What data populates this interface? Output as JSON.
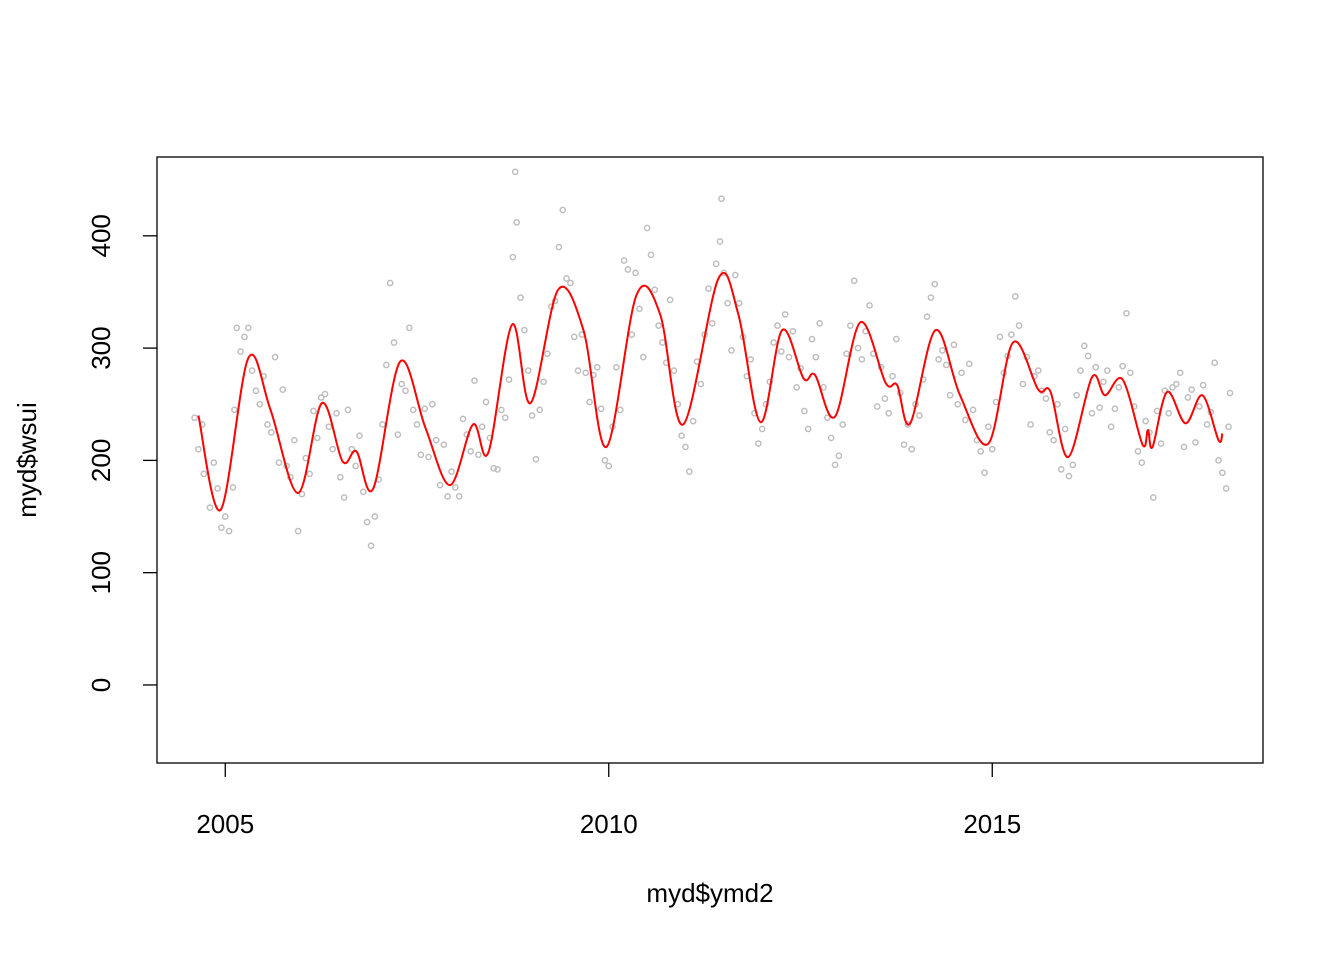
{
  "chart_data": {
    "type": "scatter",
    "xlabel": "myd$ymd2",
    "ylabel": "myd$wsui",
    "xlim": [
      2004.11,
      2018.53
    ],
    "ylim": [
      -69.5,
      470.2
    ],
    "xticks": [
      2005,
      2010,
      2015
    ],
    "yticks": [
      0,
      100,
      200,
      300,
      400
    ],
    "series": [
      {
        "type": "scatter",
        "color": "#bebebe",
        "x": [
          2004.6,
          2004.65,
          2004.7,
          2004.72,
          2004.8,
          2004.85,
          2004.9,
          2004.95,
          2005.0,
          2005.05,
          2005.1,
          2005.12,
          2005.15,
          2005.2,
          2005.25,
          2005.3,
          2005.35,
          2005.4,
          2005.45,
          2005.5,
          2005.55,
          2005.6,
          2005.65,
          2005.7,
          2005.75,
          2005.8,
          2005.85,
          2005.9,
          2005.95,
          2006.0,
          2006.05,
          2006.1,
          2006.15,
          2006.2,
          2006.25,
          2006.3,
          2006.35,
          2006.4,
          2006.45,
          2006.5,
          2006.55,
          2006.6,
          2006.65,
          2006.7,
          2006.75,
          2006.8,
          2006.85,
          2006.9,
          2006.95,
          2007.0,
          2007.05,
          2007.1,
          2007.15,
          2007.2,
          2007.25,
          2007.3,
          2007.35,
          2007.4,
          2007.45,
          2007.5,
          2007.55,
          2007.6,
          2007.65,
          2007.7,
          2007.75,
          2007.8,
          2007.85,
          2007.9,
          2007.95,
          2008.0,
          2008.05,
          2008.1,
          2008.15,
          2008.2,
          2008.25,
          2008.3,
          2008.35,
          2008.4,
          2008.45,
          2008.5,
          2008.55,
          2008.6,
          2008.65,
          2008.7,
          2008.75,
          2008.78,
          2008.8,
          2008.85,
          2008.9,
          2008.95,
          2009.0,
          2009.05,
          2009.1,
          2009.15,
          2009.2,
          2009.25,
          2009.3,
          2009.35,
          2009.4,
          2009.45,
          2009.5,
          2009.55,
          2009.6,
          2009.65,
          2009.7,
          2009.75,
          2009.8,
          2009.85,
          2009.9,
          2009.95,
          2010.0,
          2010.05,
          2010.1,
          2010.15,
          2010.2,
          2010.25,
          2010.3,
          2010.35,
          2010.4,
          2010.45,
          2010.5,
          2010.55,
          2010.6,
          2010.65,
          2010.7,
          2010.75,
          2010.8,
          2010.85,
          2010.9,
          2010.95,
          2011.0,
          2011.05,
          2011.1,
          2011.15,
          2011.2,
          2011.25,
          2011.3,
          2011.35,
          2011.4,
          2011.45,
          2011.47,
          2011.5,
          2011.55,
          2011.6,
          2011.65,
          2011.7,
          2011.75,
          2011.8,
          2011.85,
          2011.9,
          2011.95,
          2012.0,
          2012.05,
          2012.1,
          2012.15,
          2012.2,
          2012.25,
          2012.3,
          2012.35,
          2012.4,
          2012.45,
          2012.5,
          2012.55,
          2012.6,
          2012.65,
          2012.7,
          2012.75,
          2012.8,
          2012.85,
          2012.9,
          2012.95,
          2013.0,
          2013.05,
          2013.1,
          2013.15,
          2013.2,
          2013.25,
          2013.3,
          2013.35,
          2013.4,
          2013.45,
          2013.5,
          2013.55,
          2013.6,
          2013.65,
          2013.7,
          2013.75,
          2013.8,
          2013.85,
          2013.9,
          2013.95,
          2014.0,
          2014.05,
          2014.1,
          2014.15,
          2014.2,
          2014.25,
          2014.3,
          2014.35,
          2014.4,
          2014.45,
          2014.5,
          2014.55,
          2014.6,
          2014.65,
          2014.7,
          2014.75,
          2014.8,
          2014.85,
          2014.9,
          2014.95,
          2015.0,
          2015.05,
          2015.1,
          2015.15,
          2015.2,
          2015.25,
          2015.3,
          2015.35,
          2015.4,
          2015.45,
          2015.5,
          2015.55,
          2015.6,
          2015.65,
          2015.7,
          2015.75,
          2015.8,
          2015.85,
          2015.9,
          2015.95,
          2016.0,
          2016.05,
          2016.1,
          2016.15,
          2016.2,
          2016.25,
          2016.3,
          2016.35,
          2016.4,
          2016.45,
          2016.5,
          2016.55,
          2016.6,
          2016.65,
          2016.7,
          2016.75,
          2016.8,
          2016.85,
          2016.9,
          2016.95,
          2017.0,
          2017.05,
          2017.1,
          2017.15,
          2017.2,
          2017.25,
          2017.3,
          2017.35,
          2017.4,
          2017.45,
          2017.5,
          2017.55,
          2017.6,
          2017.65,
          2017.7,
          2017.75,
          2017.8,
          2017.85,
          2017.9,
          2017.95,
          2018.0,
          2018.05,
          2018.08,
          2018.1
        ],
        "values": [
          238,
          210,
          232,
          188,
          158,
          198,
          175,
          140,
          150,
          137,
          176,
          245,
          318,
          297,
          310,
          318,
          280,
          262,
          250,
          275,
          232,
          225,
          292,
          198,
          263,
          195,
          185,
          218,
          137,
          170,
          202,
          188,
          244,
          220,
          256,
          259,
          230,
          210,
          242,
          185,
          167,
          245,
          210,
          195,
          222,
          172,
          145,
          124,
          150,
          183,
          232,
          285,
          358,
          305,
          223,
          268,
          262,
          318,
          245,
          232,
          205,
          246,
          203,
          250,
          218,
          178,
          214,
          168,
          190,
          176,
          168,
          237,
          223,
          208,
          271,
          205,
          230,
          252,
          220,
          193,
          192,
          245,
          238,
          272,
          381,
          457,
          412,
          345,
          316,
          280,
          240,
          201,
          245,
          270,
          295,
          337,
          342,
          390,
          423,
          362,
          358,
          310,
          280,
          312,
          278,
          252,
          276,
          283,
          246,
          200,
          195,
          230,
          283,
          245,
          378,
          370,
          312,
          367,
          335,
          292,
          407,
          383,
          352,
          320,
          305,
          287,
          343,
          280,
          250,
          222,
          212,
          190,
          235,
          288,
          268,
          312,
          353,
          322,
          375,
          395,
          433,
          367,
          340,
          298,
          365,
          340,
          310,
          275,
          290,
          242,
          215,
          228,
          250,
          270,
          305,
          320,
          297,
          330,
          292,
          315,
          265,
          282,
          244,
          228,
          308,
          292,
          322,
          265,
          238,
          220,
          196,
          204,
          232,
          295,
          320,
          360,
          300,
          290,
          315,
          338,
          295,
          248,
          283,
          255,
          242,
          275,
          308,
          260,
          214,
          232,
          210,
          250,
          240,
          272,
          328,
          345,
          357,
          290,
          298,
          285,
          258,
          303,
          250,
          278,
          236,
          286,
          245,
          218,
          208,
          189,
          230,
          210,
          252,
          310,
          278,
          293,
          312,
          346,
          320,
          268,
          292,
          232,
          275,
          280,
          262,
          255,
          225,
          218,
          250,
          192,
          228,
          186,
          196,
          258,
          280,
          302,
          293,
          242,
          283,
          247,
          270,
          280,
          230,
          246,
          265,
          284,
          331,
          278,
          248,
          208,
          198,
          235,
          225,
          167,
          244,
          215,
          262,
          242,
          265,
          268,
          278,
          212,
          256,
          263,
          216,
          248,
          267,
          232,
          243,
          287,
          200,
          189,
          175,
          230,
          260
        ]
      },
      {
        "type": "line",
        "color": "#ff0000",
        "x": [
          2004.65,
          2004.94,
          2005.3,
          2005.59,
          2005.95,
          2006.26,
          2006.53,
          2006.71,
          2006.93,
          2007.28,
          2007.61,
          2007.93,
          2008.23,
          2008.43,
          2008.74,
          2008.98,
          2009.34,
          2009.67,
          2009.97,
          2010.36,
          2010.67,
          2010.97,
          2011.43,
          2011.69,
          2011.98,
          2012.26,
          2012.54,
          2012.69,
          2012.95,
          2013.28,
          2013.61,
          2013.76,
          2013.93,
          2014.26,
          2014.58,
          2014.95,
          2015.27,
          2015.6,
          2015.76,
          2015.99,
          2016.3,
          2016.47,
          2016.7,
          2016.96,
          2017.03,
          2017.09,
          2017.28,
          2017.52,
          2017.74,
          2017.95,
          2018.0
        ],
        "values": [
          240,
          156,
          291,
          245,
          171,
          251,
          199,
          208,
          175,
          288,
          229,
          178,
          232,
          207,
          321,
          251,
          352,
          316,
          212,
          347,
          330,
          232,
          362,
          330,
          234,
          316,
          273,
          276,
          239,
          323,
          269,
          267,
          233,
          316,
          258,
          215,
          305,
          263,
          261,
          203,
          274,
          258,
          272,
          214,
          227,
          212,
          261,
          233,
          258,
          218,
          224
        ]
      }
    ]
  }
}
